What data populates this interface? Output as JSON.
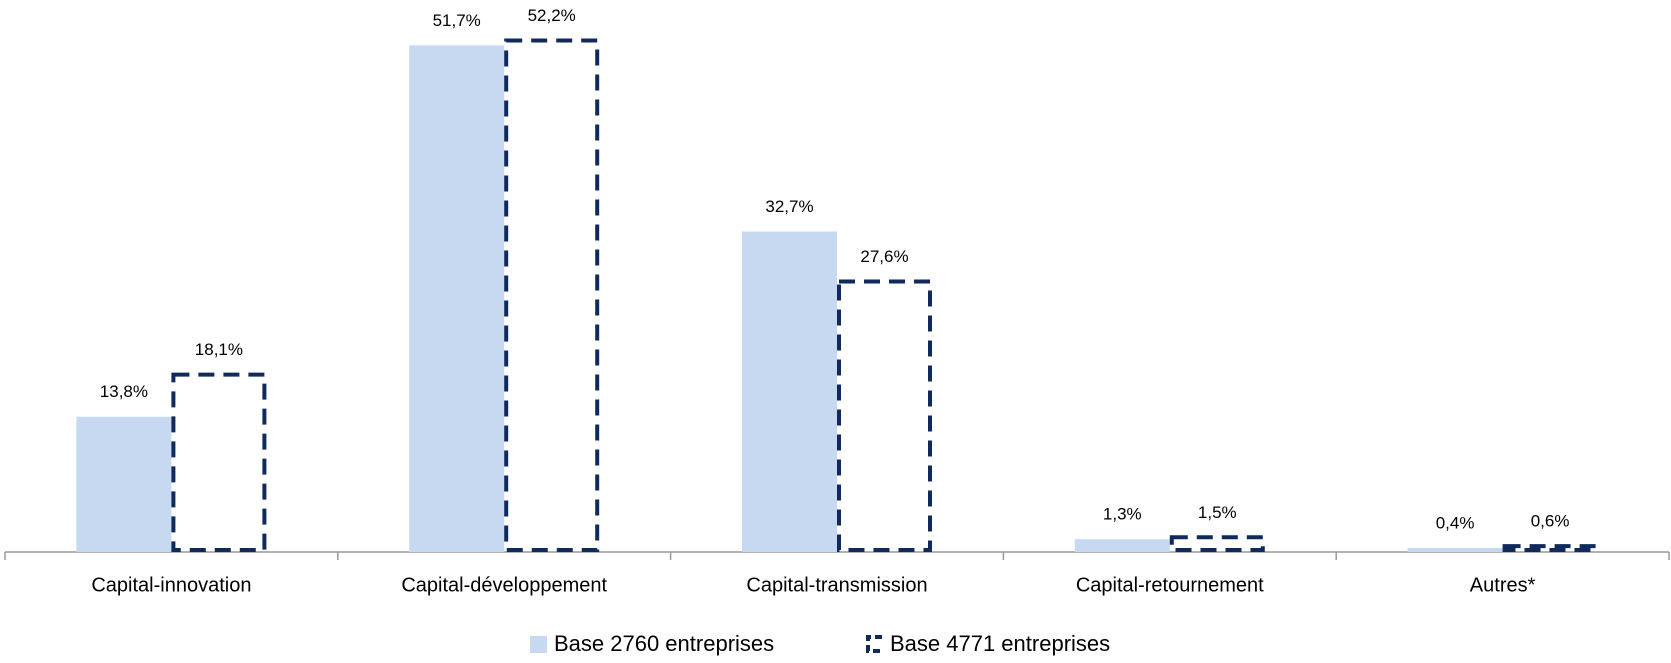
{
  "chart_data": {
    "type": "bar",
    "categories": [
      "Capital-innovation",
      "Capital-développement",
      "Capital-transmission",
      "Capital-retournement",
      "Autres*"
    ],
    "series": [
      {
        "name": "Base 2760 entreprises",
        "color": "#c6d9f1",
        "style": "solid",
        "values": [
          13.8,
          51.7,
          32.7,
          1.3,
          0.4
        ],
        "value_labels": [
          "13,8%",
          "51,7%",
          "32,7%",
          "1,3%",
          "0,4%"
        ]
      },
      {
        "name": "Base 4771 entreprises",
        "color": "#102a5c",
        "style": "dashed",
        "values": [
          18.1,
          52.2,
          27.6,
          1.5,
          0.6
        ],
        "value_labels": [
          "18,1%",
          "52,2%",
          "27,6%",
          "1,5%",
          "0,6%"
        ]
      }
    ]
  }
}
